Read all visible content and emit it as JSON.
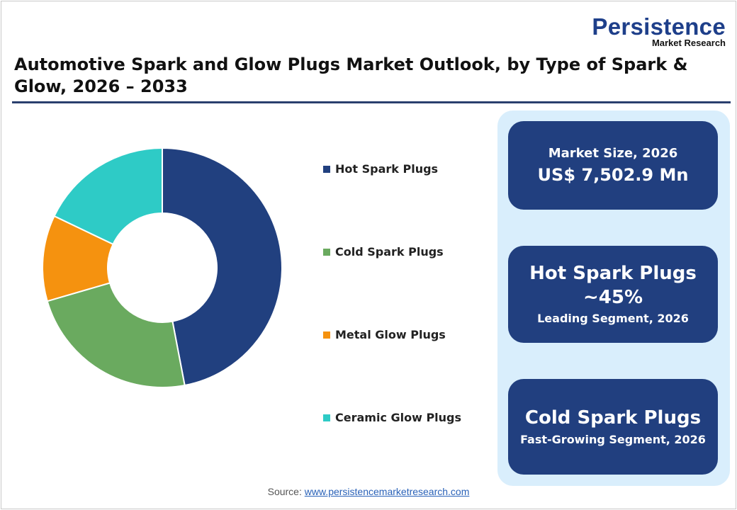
{
  "logo": {
    "line1": "Persistence",
    "line2": "Market Research"
  },
  "title": "Automotive Spark and Glow Plugs Market Outlook, by Type of Spark & Glow, 2026 – 2033",
  "chart_data": {
    "type": "pie",
    "donut": true,
    "categories": [
      "Hot Spark Plugs",
      "Cold Spark Plugs",
      "Metal Glow Plugs",
      "Ceramic Glow Plugs"
    ],
    "values": [
      47,
      23.5,
      11.6,
      17.9
    ],
    "unit": "%",
    "colors": [
      "#21407f",
      "#6aaa5f",
      "#f5920f",
      "#2ecbc6"
    ],
    "legend": "right"
  },
  "cards": [
    {
      "line1": "Market Size, 2026",
      "line2": "US$ 7,502.9 Mn"
    },
    {
      "line1": "Hot Spark Plugs",
      "line2": "~45%",
      "line3": "Leading Segment, 2026"
    },
    {
      "line1": "Cold Spark Plugs",
      "line2": "Fast-Growing Segment, 2026"
    }
  ],
  "source": {
    "label": "Source:",
    "link": "www.persistencemarketresearch.com"
  }
}
